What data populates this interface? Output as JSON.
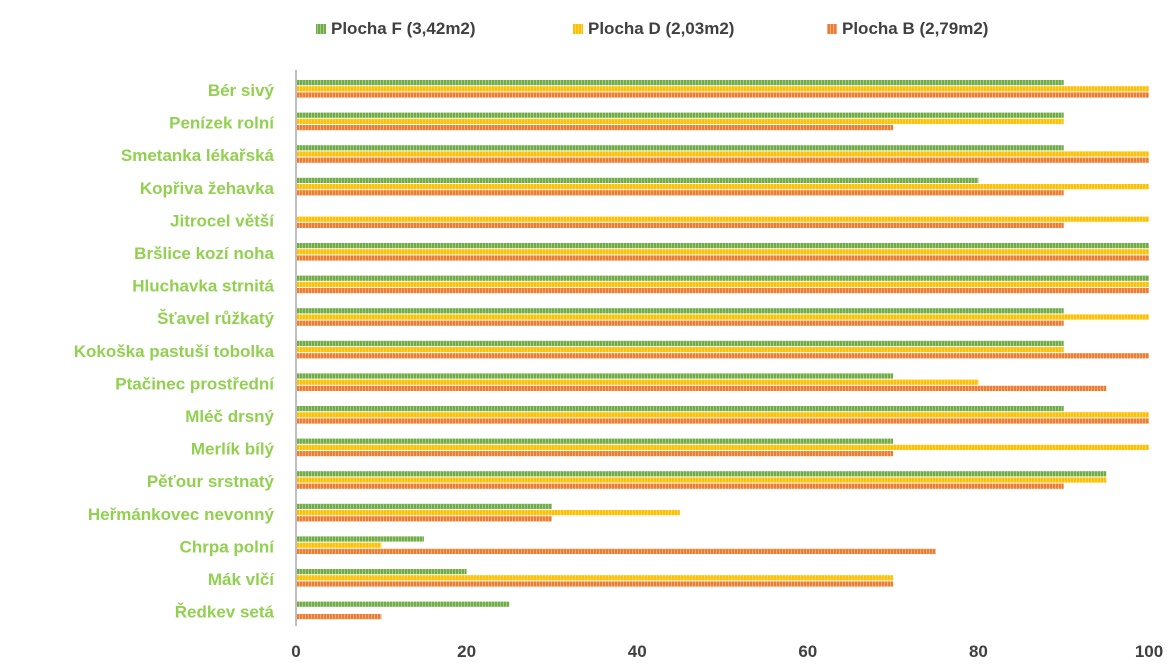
{
  "chart_data": {
    "type": "bar",
    "orientation": "horizontal",
    "title": "",
    "xlabel": "",
    "ylabel": "",
    "xlim": [
      0,
      100
    ],
    "x_ticks": [
      0,
      20,
      40,
      60,
      80,
      100
    ],
    "grid": false,
    "legend_position": "top",
    "categories": [
      "Bér sivý",
      "Penízek rolní",
      "Smetanka lékařská",
      "Kopřiva žehavka",
      "Jitrocel větší",
      "Bršlice kozí noha",
      "Hluchavka strnitá",
      "Šťavel růžkatý",
      "Kokoška pastuší tobolka",
      "Ptačinec prostřední",
      "Mléč drsný",
      "Merlík bílý",
      "Pěťour srstnatý",
      "Heřmánkovec nevonný",
      "Chrpa polní",
      "Mák vlčí",
      "Ředkev setá"
    ],
    "series": [
      {
        "name": "Plocha F (3,42m2)",
        "color": "#70ad47",
        "values": [
          90,
          90,
          90,
          80,
          0,
          100,
          100,
          90,
          90,
          70,
          90,
          70,
          95,
          30,
          15,
          20,
          25
        ]
      },
      {
        "name": "Plocha D (2,03m2)",
        "color": "#ffc000",
        "values": [
          100,
          90,
          100,
          100,
          100,
          100,
          100,
          100,
          90,
          80,
          100,
          100,
          95,
          45,
          10,
          70,
          0
        ]
      },
      {
        "name": "Plocha B (2,79m2)",
        "color": "#ed7d31",
        "values": [
          100,
          70,
          100,
          90,
          90,
          100,
          100,
          90,
          100,
          95,
          100,
          70,
          90,
          30,
          75,
          70,
          10
        ]
      }
    ],
    "category_label_color": "#92d050",
    "tick_label_color": "#404040",
    "axis_color": "#bfbfbf"
  }
}
